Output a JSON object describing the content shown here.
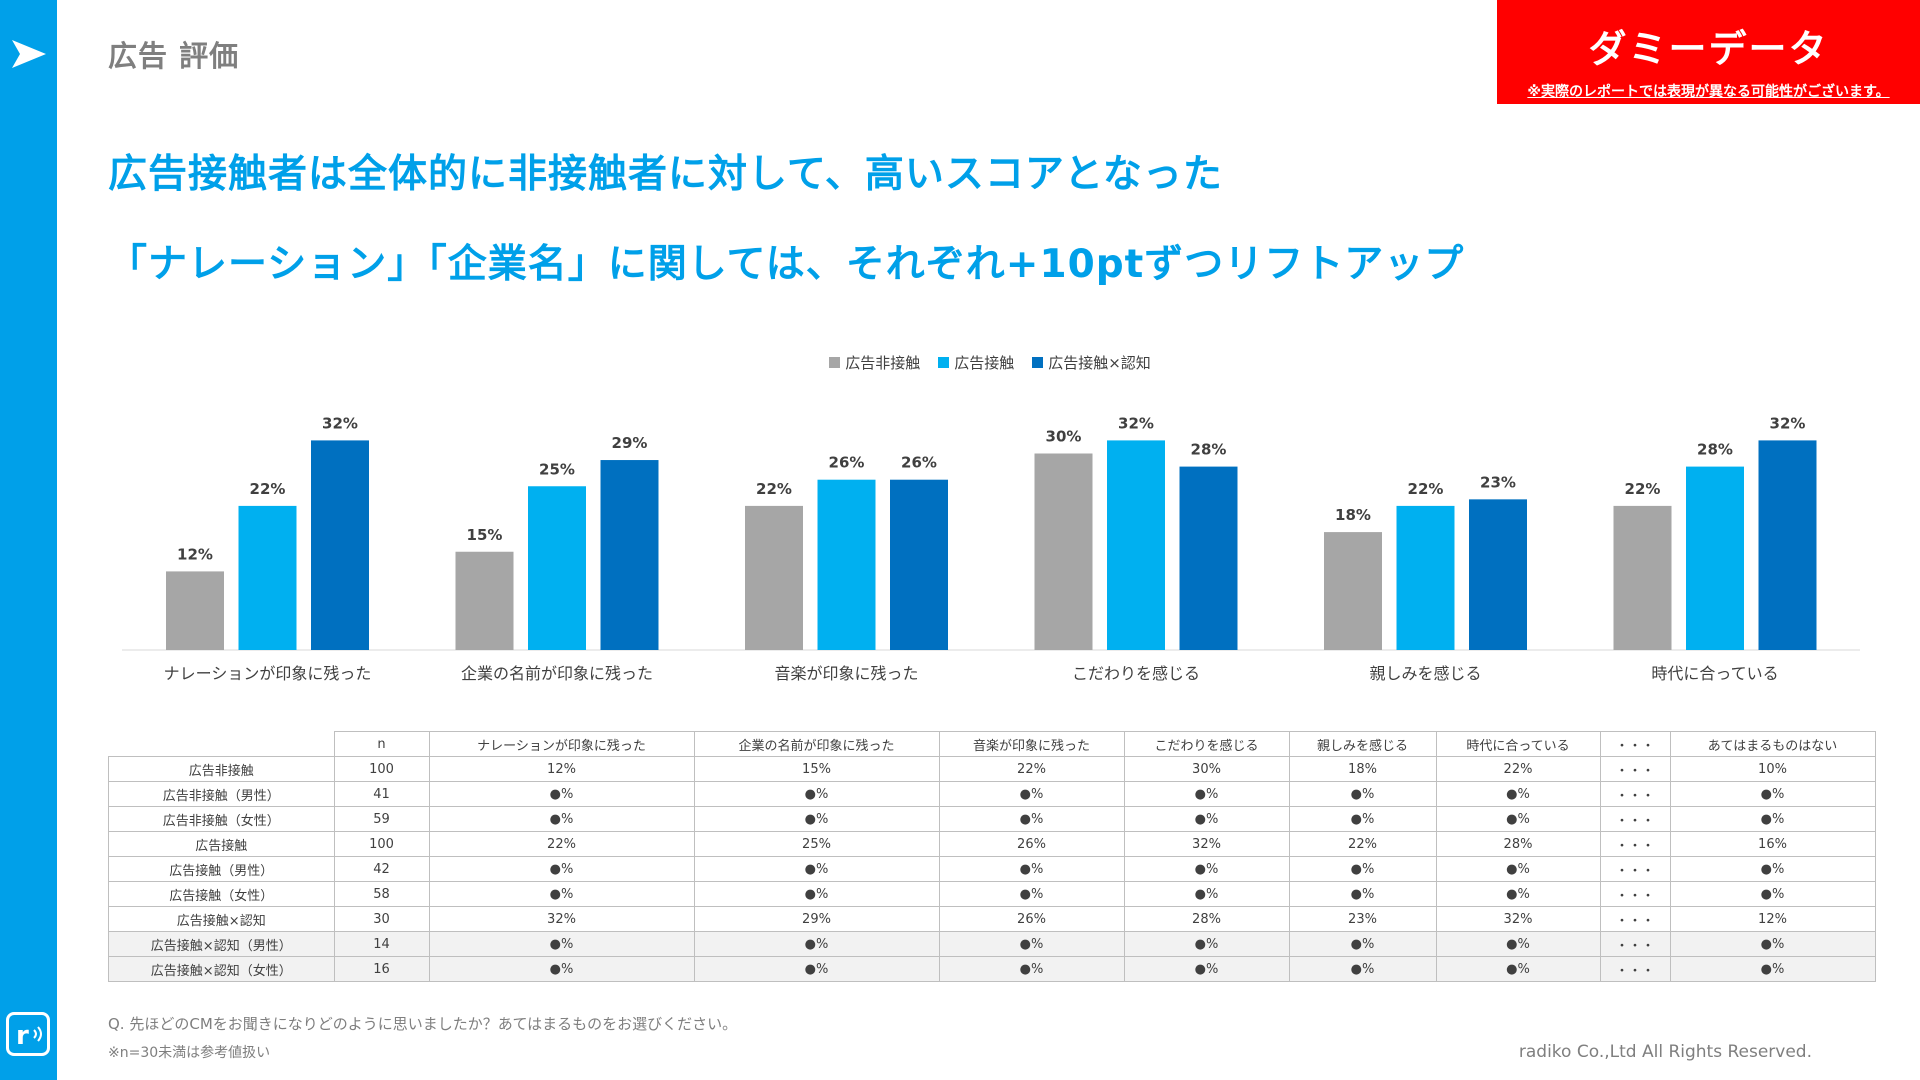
{
  "header": {
    "section_title": "広告 評価",
    "badge_label": "ダミーデータ",
    "badge_note": "※実際のレポートでは表現が異なる可能性がございます。"
  },
  "headline": {
    "line1": "広告接触者は全体的に非接触者に対して、高いスコアとなった",
    "line2": "「ナレーション」「企業名」に関しては、それぞれ+10ptずつリフトアップ"
  },
  "colors": {
    "accent": "#00a0e9",
    "series_gray": "#a6a6a6",
    "series_light": "#00b0f0",
    "series_dark": "#0070c0",
    "badge": "#ff0000"
  },
  "chart_data": {
    "type": "bar",
    "categories": [
      "ナレーションが印象に残った",
      "企業の名前が印象に残った",
      "音楽が印象に残った",
      "こだわりを感じる",
      "親しみを感じる",
      "時代に合っている"
    ],
    "series": [
      {
        "name": "広告非接触",
        "values": [
          12,
          15,
          22,
          30,
          18,
          22
        ]
      },
      {
        "name": "広告接触",
        "values": [
          22,
          25,
          26,
          32,
          22,
          28
        ]
      },
      {
        "name": "広告接触×認知",
        "values": [
          32,
          29,
          26,
          28,
          23,
          32
        ]
      }
    ],
    "value_suffix": "%",
    "legend_position": "top-center",
    "grid": false
  },
  "table": {
    "headers": [
      "",
      "n",
      "ナレーションが印象に残った",
      "企業の名前が印象に残った",
      "音楽が印象に残った",
      "こだわりを感じる",
      "親しみを感じる",
      "時代に合っている",
      "・・・",
      "あてはまるものはない"
    ],
    "rows": [
      {
        "label": "広告非接触",
        "n": "100",
        "cells": [
          "12%",
          "15%",
          "22%",
          "30%",
          "18%",
          "22%",
          "・・・",
          "10%"
        ]
      },
      {
        "label": "広告非接触（男性）",
        "n": "41",
        "cells": [
          "●%",
          "●%",
          "●%",
          "●%",
          "●%",
          "●%",
          "・・・",
          "●%"
        ]
      },
      {
        "label": "広告非接触（女性）",
        "n": "59",
        "cells": [
          "●%",
          "●%",
          "●%",
          "●%",
          "●%",
          "●%",
          "・・・",
          "●%"
        ]
      },
      {
        "label": "広告接触",
        "n": "100",
        "cells": [
          "22%",
          "25%",
          "26%",
          "32%",
          "22%",
          "28%",
          "・・・",
          "16%"
        ]
      },
      {
        "label": "広告接触（男性）",
        "n": "42",
        "cells": [
          "●%",
          "●%",
          "●%",
          "●%",
          "●%",
          "●%",
          "・・・",
          "●%"
        ]
      },
      {
        "label": "広告接触（女性）",
        "n": "58",
        "cells": [
          "●%",
          "●%",
          "●%",
          "●%",
          "●%",
          "●%",
          "・・・",
          "●%"
        ]
      },
      {
        "label": "広告接触×認知",
        "n": "30",
        "cells": [
          "32%",
          "29%",
          "26%",
          "28%",
          "23%",
          "32%",
          "・・・",
          "12%"
        ]
      },
      {
        "label": "広告接触×認知（男性）",
        "n": "14",
        "cells": [
          "●%",
          "●%",
          "●%",
          "●%",
          "●%",
          "●%",
          "・・・",
          "●%"
        ]
      },
      {
        "label": "広告接触×認知（女性）",
        "n": "16",
        "cells": [
          "●%",
          "●%",
          "●%",
          "●%",
          "●%",
          "●%",
          "・・・",
          "●%"
        ]
      }
    ]
  },
  "footer": {
    "question": "Q. 先ほどのCMをお聞きになりどのように思いましたか？あてはまるものをお選びください。",
    "note": "※n=30未満は参考値扱い",
    "copyright": "radiko Co.,Ltd All Rights Reserved."
  }
}
